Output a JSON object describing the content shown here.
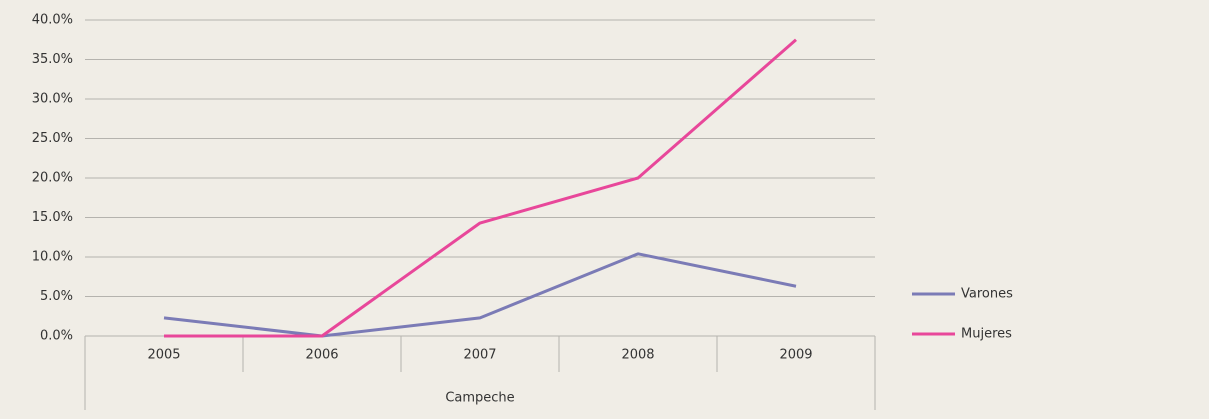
{
  "chart_data": {
    "type": "line",
    "categories": [
      "2005",
      "2006",
      "2007",
      "2008",
      "2009"
    ],
    "group_label": "Campeche",
    "series": [
      {
        "name": "Varones",
        "color": "#7b7bb6",
        "values": [
          2.3,
          0,
          2.3,
          10.4,
          6.3
        ]
      },
      {
        "name": "Mujeres",
        "color": "#e8479a",
        "values": [
          0,
          0,
          14.3,
          20.0,
          37.5
        ]
      }
    ],
    "ylim": [
      0,
      40
    ],
    "yticks": [
      {
        "value": 0,
        "label": "0.0%"
      },
      {
        "value": 5,
        "label": "5.0%"
      },
      {
        "value": 10,
        "label": "10.0%"
      },
      {
        "value": 15,
        "label": "15.0%"
      },
      {
        "value": 20,
        "label": "20.0%"
      },
      {
        "value": 25,
        "label": "25.0%"
      },
      {
        "value": 30,
        "label": "30.0%"
      },
      {
        "value": 35,
        "label": "35.0%"
      },
      {
        "value": 40,
        "label": "40.0%"
      }
    ],
    "grid": true,
    "legend": "right"
  }
}
